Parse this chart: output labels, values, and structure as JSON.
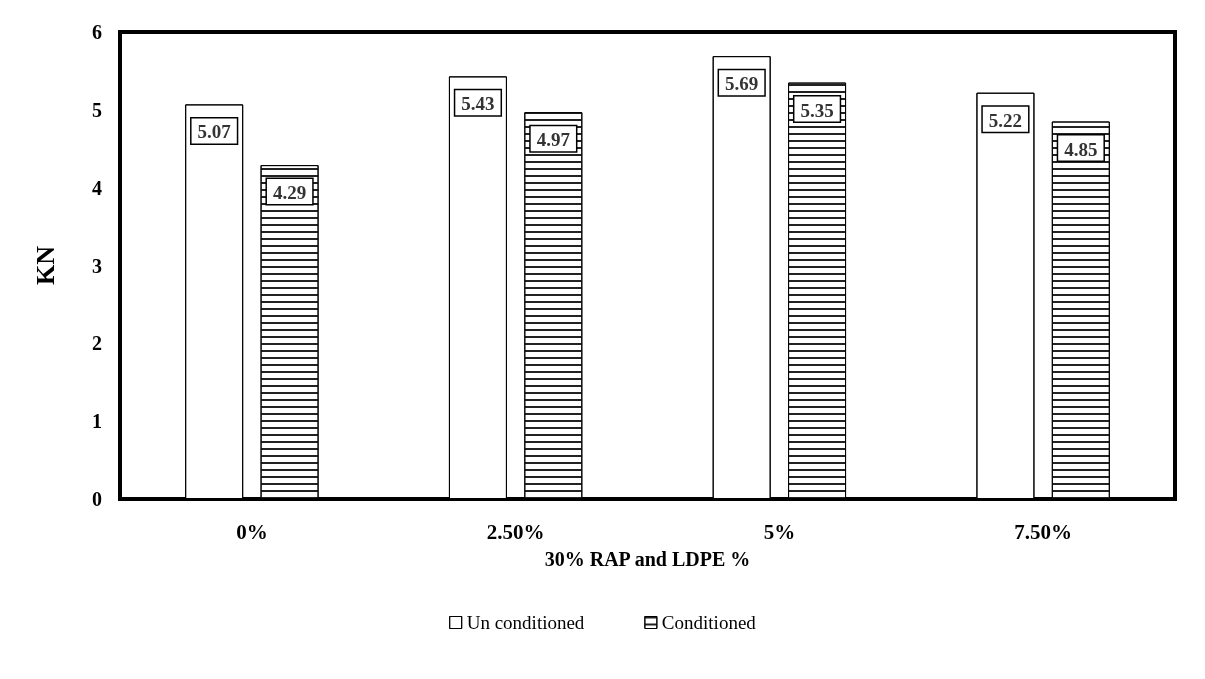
{
  "chart_data": {
    "type": "bar",
    "xlabel": "30% RAP and LDPE %",
    "ylabel": "KN",
    "categories": [
      "0%",
      "2.50%",
      "5%",
      "7.50%"
    ],
    "series": [
      {
        "name": "Un conditioned",
        "color": "#ffffff",
        "values": [
          5.07,
          5.43,
          5.69,
          5.22
        ]
      },
      {
        "name": "Conditioned",
        "color": "#ffffff",
        "values": [
          4.29,
          4.97,
          5.35,
          4.85
        ]
      }
    ],
    "ylim": [
      0,
      6
    ],
    "yticks": [
      0,
      1,
      2,
      3,
      4,
      5,
      6
    ],
    "grid": false,
    "legend": "bottom",
    "data_labels": true
  }
}
